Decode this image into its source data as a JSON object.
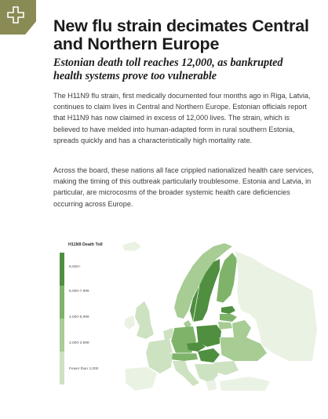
{
  "article": {
    "headline": "New flu strain decimates Central and Northern Europe",
    "subhead": "Estonian death toll reaches 12,000, as bankrupted health systems prove too vulnerable",
    "paragraphs": [
      "The H11N9 flu strain, first medically documented four months ago in Riga, Latvia, continues to claim lives in Central and Northern Europe. Estonian officials report that H11N9 has now claimed in excess of 12,000 lives. The strain, which is believed to have melded into human-adapted form in rural southern Estonia, spreads quickly and has a characteristically high mortality rate.",
      "Across the board, these nations all face crippled nationalized health care services, making the timing of this outbreak particularly troublesome. Estonia and Latvia, in particular, are microcosms of the broader systemic health care deficiencies occurring across Europe."
    ]
  },
  "icons": {
    "corner": "plus-cross-icon"
  },
  "colors": {
    "tab": "#8a8a55",
    "scale": [
      "#4f8f3f",
      "#7fb36a",
      "#a7cc94",
      "#cde2c1",
      "#eaf2e4"
    ]
  },
  "map": {
    "legend_title": "H11N9 Death Toll",
    "legend": [
      {
        "label": "8,000+",
        "level": 0
      },
      {
        "label": "6,000-7,999",
        "level": 1
      },
      {
        "label": "4,000-5,999",
        "level": 2
      },
      {
        "label": "2,000-3,999",
        "level": 3
      },
      {
        "label": "Fewer than 2,000",
        "level": 4
      }
    ]
  }
}
